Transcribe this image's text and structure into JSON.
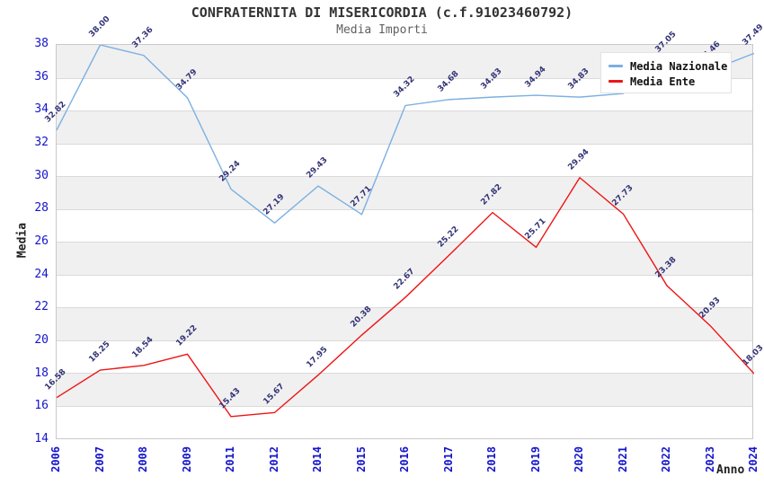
{
  "header": {
    "title": "CONFRATERNITA DI MISERICORDIA (c.f.91023460792)",
    "subtitle": "Media Importi"
  },
  "colors": {
    "nazionale_line": "#7cb0e2",
    "ente_line": "#ee1515",
    "tick_label": "#1414cc",
    "point_label": "#333377",
    "band_gray": "#f0f0f0",
    "band_white": "#ffffff"
  },
  "chart_data": {
    "type": "line",
    "title": "CONFRATERNITA DI MISERICORDIA (c.f.91023460792)",
    "subtitle": "Media Importi",
    "xlabel": "Anno",
    "ylabel": "Media",
    "x": [
      2006,
      2007,
      2008,
      2009,
      2011,
      2012,
      2014,
      2015,
      2016,
      2017,
      2018,
      2019,
      2020,
      2021,
      2022,
      2023,
      2024
    ],
    "series": [
      {
        "name": "Media Nazionale",
        "color": "#7cb0e2",
        "values": [
          32.82,
          38.0,
          37.36,
          34.79,
          29.24,
          27.19,
          29.43,
          27.71,
          34.32,
          34.68,
          34.83,
          34.94,
          34.83,
          35.05,
          37.05,
          36.46,
          37.49
        ]
      },
      {
        "name": "Media Ente",
        "color": "#ee1515",
        "values": [
          16.58,
          18.25,
          18.54,
          19.22,
          15.43,
          15.67,
          17.95,
          20.38,
          22.67,
          25.22,
          27.82,
          25.71,
          29.94,
          27.73,
          23.38,
          20.93,
          18.03
        ]
      }
    ],
    "ylim": [
      14,
      38
    ],
    "yticks": [
      14,
      16,
      18,
      20,
      22,
      24,
      26,
      28,
      30,
      32,
      34,
      36,
      38
    ],
    "grid": true,
    "alternating_bands": true,
    "legend_position": "top-right",
    "point_label_format": "2-decimals",
    "point_label_rotation_deg": -45
  }
}
